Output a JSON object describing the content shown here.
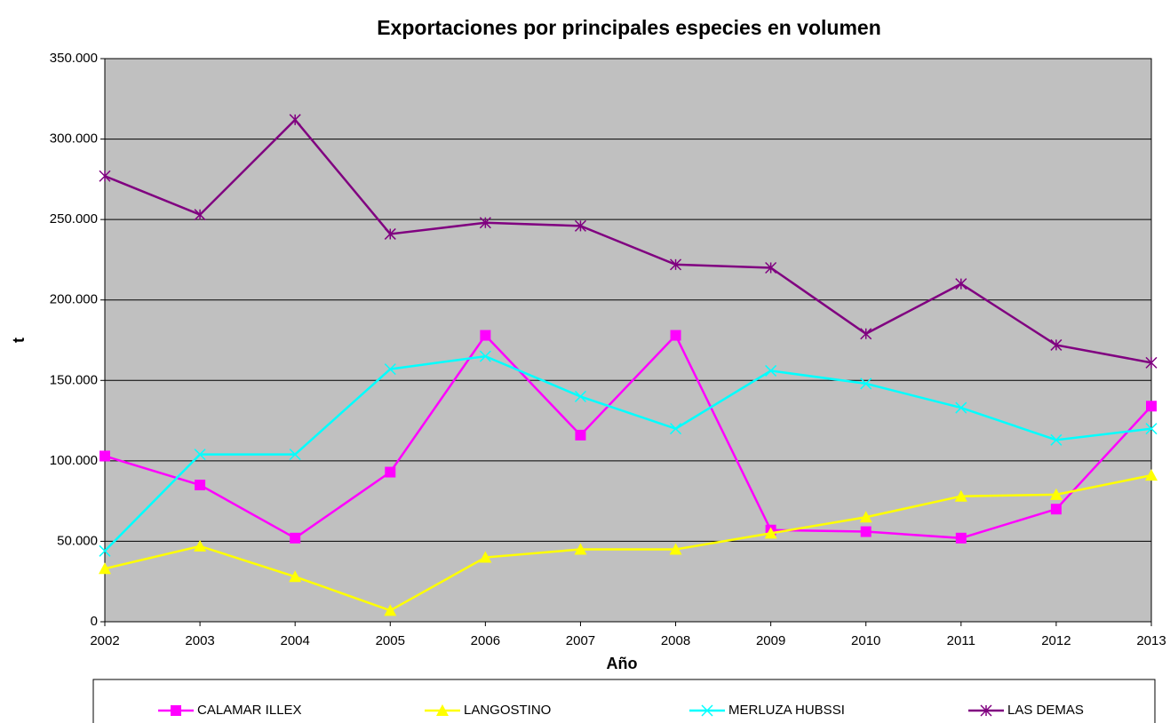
{
  "chart_data": {
    "type": "line",
    "title": "Exportaciones por principales especies en volumen",
    "xlabel": "Año",
    "ylabel": "t",
    "categories": [
      "2002",
      "2003",
      "2004",
      "2005",
      "2006",
      "2007",
      "2008",
      "2009",
      "2010",
      "2011",
      "2012",
      "2013"
    ],
    "series": [
      {
        "name": "CALAMAR ILLEX",
        "color": "#ff00ff",
        "marker": "square",
        "values": [
          103000,
          85000,
          52000,
          93000,
          178000,
          116000,
          178000,
          57000,
          56000,
          52000,
          70000,
          134000
        ]
      },
      {
        "name": "LANGOSTINO",
        "color": "#ffff00",
        "marker": "triangle",
        "values": [
          33000,
          47000,
          28000,
          7000,
          40000,
          45000,
          45000,
          55000,
          65000,
          78000,
          79000,
          91000
        ]
      },
      {
        "name": "MERLUZA HUBSSI",
        "color": "#00ffff",
        "marker": "x",
        "values": [
          44000,
          104000,
          104000,
          157000,
          165000,
          140000,
          120000,
          156000,
          148000,
          133000,
          113000,
          120000
        ]
      },
      {
        "name": "LAS DEMAS",
        "color": "#800080",
        "marker": "asterisk",
        "values": [
          277000,
          253000,
          312000,
          241000,
          248000,
          246000,
          222000,
          220000,
          179000,
          210000,
          172000,
          161000
        ]
      }
    ],
    "ylim": [
      0,
      350000
    ],
    "yticks": [
      0,
      {
        "value": 50000,
        "label": "50.000"
      },
      {
        "value": 100000,
        "label": "100.000"
      },
      {
        "value": 150000,
        "label": "150.000"
      },
      {
        "value": 200000,
        "label": "200.000"
      },
      {
        "value": 250000,
        "label": "250.000"
      },
      {
        "value": 300000,
        "label": "300.000"
      },
      {
        "value": 350000,
        "label": "350.000"
      }
    ],
    "grid": true,
    "plot_background": "#c0c0c0",
    "legend": "bottom"
  }
}
